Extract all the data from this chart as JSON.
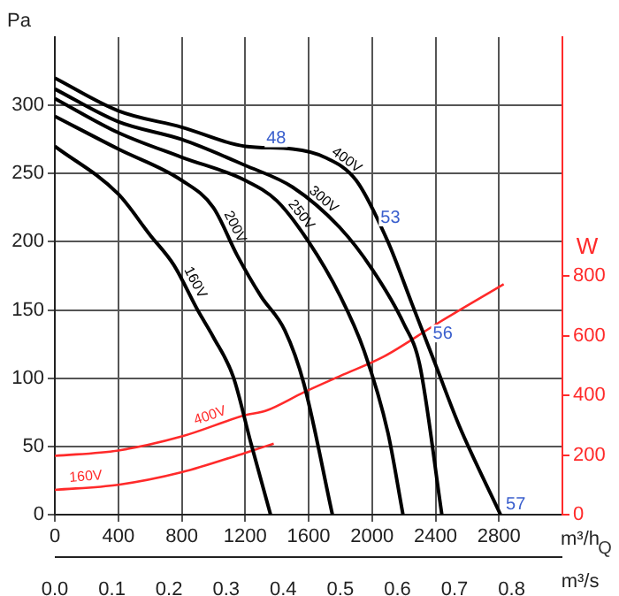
{
  "chart_data": {
    "type": "line",
    "xlabel": "m³/h",
    "x2label": "m³/s",
    "ylabel": "Pa",
    "y2label": "W",
    "xlim": [
      0,
      3200
    ],
    "xticks": [
      0,
      400,
      800,
      1200,
      1600,
      2000,
      2400,
      2800
    ],
    "x2lim": [
      0,
      0.8889
    ],
    "x2ticks": [
      {
        "value": 0,
        "label": "0.0"
      },
      {
        "value": 0.1,
        "label": "0.1"
      },
      {
        "value": 0.2,
        "label": "0.2"
      },
      {
        "value": 0.3,
        "label": "0.3"
      },
      {
        "value": 0.4,
        "label": "0.4"
      },
      {
        "value": 0.5,
        "label": "0.5"
      },
      {
        "value": 0.6,
        "label": "0.6"
      },
      {
        "value": 0.7,
        "label": "0.7"
      },
      {
        "value": 0.8,
        "label": "0.8"
      }
    ],
    "ylim": [
      0,
      350
    ],
    "yticks": [
      0,
      50,
      100,
      150,
      200,
      250,
      300
    ],
    "y2lim": [
      0,
      1600
    ],
    "y2ticks": [
      0,
      200,
      400,
      600,
      800
    ],
    "grid": true,
    "legend": false,
    "marker": "none",
    "line_style": "solid",
    "series": [
      {
        "name": "400V",
        "color": "#000000",
        "x": [
          0,
          400,
          800,
          1200,
          1500,
          1700,
          1900,
          2100,
          2250,
          2400,
          2550,
          2810
        ],
        "values": [
          320,
          296,
          284,
          270,
          268,
          262,
          245,
          200,
          155,
          110,
          65,
          0
        ]
      },
      {
        "name": "300V",
        "color": "#000000",
        "x": [
          0,
          400,
          800,
          1200,
          1500,
          1800,
          2000,
          2200,
          2300,
          2440
        ],
        "values": [
          312,
          288,
          275,
          256,
          240,
          210,
          180,
          140,
          110,
          0
        ]
      },
      {
        "name": "250V",
        "color": "#000000",
        "x": [
          0,
          400,
          800,
          1200,
          1400,
          1600,
          1800,
          1950,
          2100,
          2195
        ],
        "values": [
          305,
          280,
          262,
          245,
          230,
          200,
          160,
          120,
          60,
          0
        ]
      },
      {
        "name": "200V",
        "color": "#000000",
        "x": [
          0,
          400,
          800,
          1000,
          1150,
          1300,
          1450,
          1570,
          1750
        ],
        "values": [
          292,
          268,
          245,
          225,
          190,
          160,
          135,
          96,
          0
        ]
      },
      {
        "name": "160V",
        "color": "#000000",
        "x": [
          0,
          400,
          600,
          750,
          900,
          1000,
          1125,
          1235,
          1360
        ],
        "values": [
          270,
          235,
          205,
          183,
          150,
          130,
          101,
          53,
          0
        ]
      },
      {
        "name": "400V",
        "color": "#ff2a2a",
        "axis": "y2",
        "x": [
          0,
          400,
          800,
          1200,
          1330,
          1570,
          1800,
          2075,
          2410,
          2830
        ],
        "values": [
          197,
          215,
          262,
          333,
          348,
          410,
          465,
          530,
          640,
          772
        ]
      },
      {
        "name": "160V",
        "color": "#ff2a2a",
        "axis": "y2",
        "x": [
          0,
          400,
          800,
          1200,
          1380
        ],
        "values": [
          83,
          100,
          142,
          207,
          238
        ]
      }
    ],
    "annotations": [
      {
        "text": "48",
        "x": 1300,
        "y": 268
      },
      {
        "text": "53",
        "x": 2020,
        "y": 210
      },
      {
        "text": "56",
        "x": 2350,
        "y": 125
      },
      {
        "text": "57",
        "x": 2810,
        "y": 0
      },
      "Q"
    ]
  }
}
